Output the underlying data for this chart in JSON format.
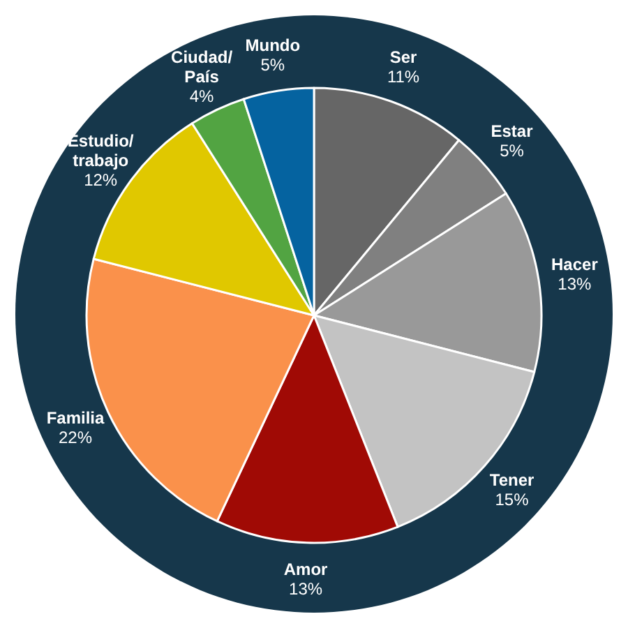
{
  "chart_data": {
    "type": "pie",
    "categories": [
      "Ser",
      "Estar",
      "Hacer",
      "Tener",
      "Amor",
      "Familia",
      "Estudio/trabajo",
      "Ciudad/País",
      "Mundo"
    ],
    "values": [
      11,
      5,
      13,
      15,
      13,
      22,
      12,
      4,
      5
    ],
    "value_labels": [
      "11%",
      "5%",
      "13%",
      "15%",
      "13%",
      "22%",
      "12%",
      "4%",
      "5%"
    ],
    "colors": [
      "#666666",
      "#808080",
      "#999999",
      "#c3c3c3",
      "#a00a05",
      "#fa914b",
      "#e0c800",
      "#52a442",
      "#0563a0"
    ]
  }
}
